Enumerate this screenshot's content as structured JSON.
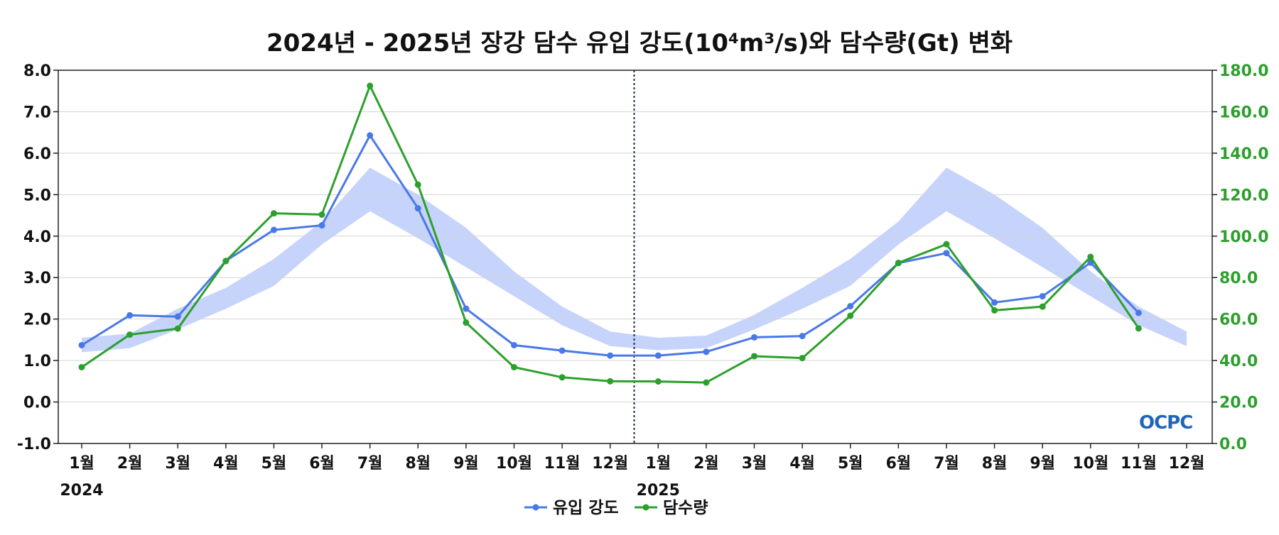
{
  "chart_data": {
    "type": "line",
    "title": "2024년 - 2025년 장강 담수 유입 강도(10⁴m³/s)와 담수량(Gt) 변화",
    "categories": [
      "1월",
      "2월",
      "3월",
      "4월",
      "5월",
      "6월",
      "7월",
      "8월",
      "9월",
      "10월",
      "11월",
      "12월",
      "1월",
      "2월",
      "3월",
      "4월",
      "5월",
      "6월",
      "7월",
      "8월",
      "9월",
      "10월",
      "11월",
      "12월"
    ],
    "year_labels": [
      {
        "index": 0,
        "text": "2024"
      },
      {
        "index": 12,
        "text": "2025"
      }
    ],
    "divider_after_index": 11,
    "left_axis": {
      "ylim": [
        -1.0,
        8.0
      ],
      "ticks": [
        "-1.0",
        "0.0",
        "1.0",
        "2.0",
        "3.0",
        "4.0",
        "5.0",
        "6.0",
        "7.0",
        "8.0"
      ]
    },
    "right_axis": {
      "ylim": [
        0.0,
        180.0
      ],
      "ticks": [
        "0.0",
        "20.0",
        "40.0",
        "60.0",
        "80.0",
        "100.0",
        "120.0",
        "140.0",
        "160.0",
        "180.0"
      ],
      "color": "#2ca02c"
    },
    "climatology_band": {
      "axis": "left",
      "color": "#c6d3fb",
      "lower": [
        1.2,
        1.3,
        1.75,
        2.25,
        2.8,
        3.8,
        4.6,
        3.95,
        3.25,
        2.55,
        1.85,
        1.35,
        1.25,
        1.3,
        1.75,
        2.25,
        2.8,
        3.8,
        4.6,
        3.95,
        3.25,
        2.55,
        1.85,
        1.35
      ],
      "upper": [
        1.55,
        1.65,
        2.25,
        2.75,
        3.45,
        4.35,
        5.65,
        5.0,
        4.2,
        3.15,
        2.3,
        1.7,
        1.55,
        1.6,
        2.1,
        2.75,
        3.45,
        4.35,
        5.65,
        5.0,
        4.2,
        3.15,
        2.3,
        1.7
      ]
    },
    "series": [
      {
        "name": "유입 강도",
        "axis": "left",
        "color": "#4a78e6",
        "values": [
          1.37,
          2.09,
          2.06,
          3.4,
          4.15,
          4.26,
          6.43,
          4.67,
          2.25,
          1.37,
          1.24,
          1.12,
          1.12,
          1.21,
          1.56,
          1.59,
          2.31,
          3.35,
          3.59,
          2.4,
          2.55,
          3.36,
          2.15,
          null
        ]
      },
      {
        "name": "담수량",
        "axis": "right",
        "color": "#2ca02c",
        "values": [
          36.8,
          52.5,
          55.4,
          88.0,
          111.0,
          110.4,
          172.5,
          124.8,
          58.3,
          36.8,
          31.9,
          30.0,
          29.9,
          29.4,
          42.1,
          41.2,
          61.6,
          87.1,
          96.1,
          64.2,
          66.0,
          90.0,
          55.5,
          null
        ]
      }
    ],
    "grid": true,
    "legend_position": "bottom-center",
    "watermark": "OCPC"
  }
}
